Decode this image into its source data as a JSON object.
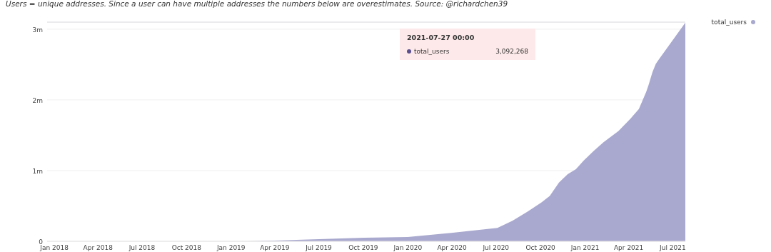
{
  "chart_data": {
    "type": "area",
    "title": "Users = unique addresses. Since a user can have multiple addresses the numbers below are overestimates. Source: @richardchen39",
    "x": [
      "2019-02-01",
      "2019-03-31",
      "2019-07-02",
      "2019-10-03",
      "2020-01-01",
      "2020-04-03",
      "2020-07-04",
      "2020-08-04",
      "2020-09-04",
      "2020-10-03",
      "2020-10-20",
      "2020-11-08",
      "2020-11-26",
      "2020-12-13",
      "2020-12-29",
      "2021-01-19",
      "2021-02-08",
      "2021-03-11",
      "2021-04-04",
      "2021-04-22",
      "2021-05-07",
      "2021-05-12",
      "2021-05-20",
      "2021-05-27",
      "2021-06-01",
      "2021-07-27"
    ],
    "series": [
      {
        "name": "total_users",
        "color": "#a9a9cf",
        "values": [
          0,
          10000,
          30000,
          50000,
          60000,
          120000,
          190000,
          290000,
          420000,
          550000,
          640000,
          830000,
          950000,
          1020000,
          1140000,
          1280000,
          1400000,
          1560000,
          1730000,
          1870000,
          2110000,
          2210000,
          2390000,
          2510000,
          2560000,
          3092268
        ]
      }
    ],
    "xlim": [
      "2017-12-17",
      "2021-07-27"
    ],
    "xticks": [
      {
        "value": "2018-01-01",
        "label": "Jan 2018"
      },
      {
        "value": "2018-04-01",
        "label": "Apr 2018"
      },
      {
        "value": "2018-07-01",
        "label": "Jul 2018"
      },
      {
        "value": "2018-10-01",
        "label": "Oct 2018"
      },
      {
        "value": "2019-01-01",
        "label": "Jan 2019"
      },
      {
        "value": "2019-04-01",
        "label": "Apr 2019"
      },
      {
        "value": "2019-07-01",
        "label": "Jul 2019"
      },
      {
        "value": "2019-10-01",
        "label": "Oct 2019"
      },
      {
        "value": "2020-01-01",
        "label": "Jan 2020"
      },
      {
        "value": "2020-04-01",
        "label": "Apr 2020"
      },
      {
        "value": "2020-07-01",
        "label": "Jul 2020"
      },
      {
        "value": "2020-10-01",
        "label": "Oct 2020"
      },
      {
        "value": "2021-01-01",
        "label": "Jan 2021"
      },
      {
        "value": "2021-04-01",
        "label": "Apr 2021"
      },
      {
        "value": "2021-07-01",
        "label": "Jul 2021"
      }
    ],
    "ylim": [
      0,
      3100000
    ],
    "yticks": [
      0,
      {
        "value": 1000000,
        "label": "1m"
      },
      {
        "value": 2000000,
        "label": "2m"
      },
      {
        "value": 3000000,
        "label": "3m"
      }
    ],
    "grid": "y",
    "legend": "top right",
    "annotations": [
      "2021-07-27 00:00",
      "3,092,268"
    ]
  }
}
